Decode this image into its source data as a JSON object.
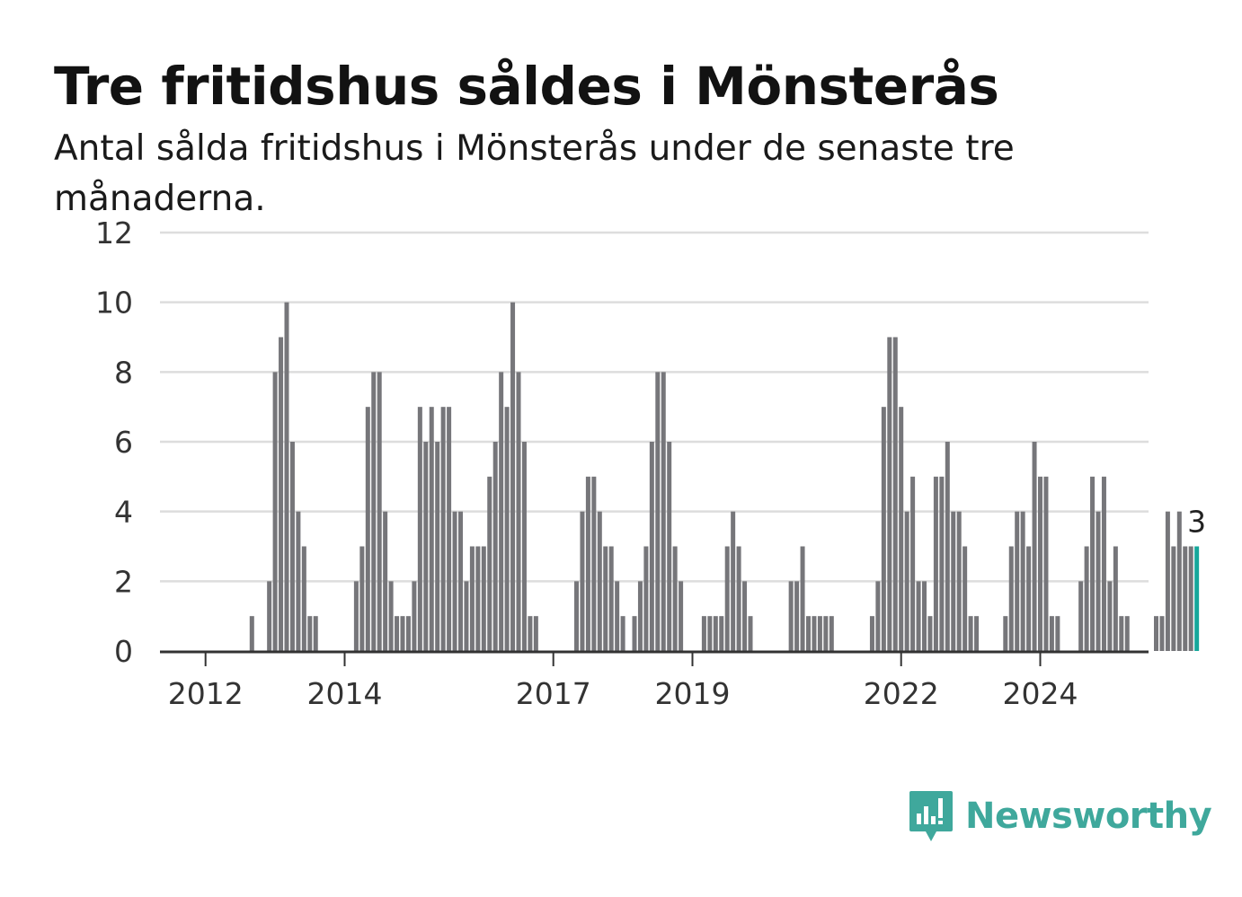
{
  "title": "Tre fritidshus såldes i Mönsterås",
  "subtitle": "Antal sålda fritidshus i Mönsterås under de senaste tre månaderna.",
  "brand": "Newsworthy",
  "colors": {
    "bar": "#76767a",
    "highlight": "#17a79b",
    "grid": "#dddddd",
    "axis": "#333333",
    "brand": "#3fa89c"
  },
  "chart_data": {
    "type": "bar",
    "title": "Tre fritidshus såldes i Mönsterås",
    "ylim": [
      0,
      12
    ],
    "y_ticks": [
      "0",
      "2",
      "4",
      "6",
      "8",
      "10",
      "12"
    ],
    "x_ticks": [
      "2012",
      "2014",
      "2017",
      "2019",
      "2022",
      "2024"
    ],
    "grid": true,
    "highlight_label": "3",
    "series": [
      {
        "values": [
          null,
          null,
          null,
          null,
          null,
          null,
          null,
          null,
          1,
          null,
          null,
          2,
          8,
          9,
          10,
          6,
          4,
          3,
          1,
          1,
          null,
          null,
          null,
          null,
          null,
          null,
          2,
          3,
          7,
          8,
          8,
          4,
          2,
          1,
          1,
          1,
          2,
          7,
          6,
          7,
          6,
          7,
          7,
          4,
          4,
          2,
          3,
          3,
          3,
          5,
          6,
          8,
          7,
          10,
          8,
          6,
          1,
          1,
          null,
          null,
          null,
          null,
          null,
          null,
          2,
          4,
          5,
          5,
          4,
          3,
          3,
          2,
          1,
          null,
          1,
          2,
          3,
          6,
          8,
          8,
          6,
          3,
          2,
          null,
          null,
          null,
          1,
          1,
          1,
          1,
          3,
          4,
          3,
          2,
          1,
          null,
          null,
          null,
          null,
          null,
          null,
          2,
          2,
          3,
          1,
          1,
          1,
          1,
          1,
          null,
          null,
          null,
          null,
          null,
          null,
          1,
          2,
          7,
          9,
          9,
          7,
          4,
          5,
          2,
          2,
          1,
          5,
          5,
          6,
          4,
          4,
          3,
          1,
          1,
          null,
          null,
          null,
          null,
          1,
          3,
          4,
          4,
          3,
          6,
          5,
          5,
          1,
          1,
          null,
          null,
          null,
          2,
          3,
          5,
          4,
          5,
          2,
          3,
          1,
          1,
          null,
          null,
          null,
          null,
          1,
          1,
          4,
          3,
          4,
          3,
          3,
          3
        ]
      }
    ]
  }
}
